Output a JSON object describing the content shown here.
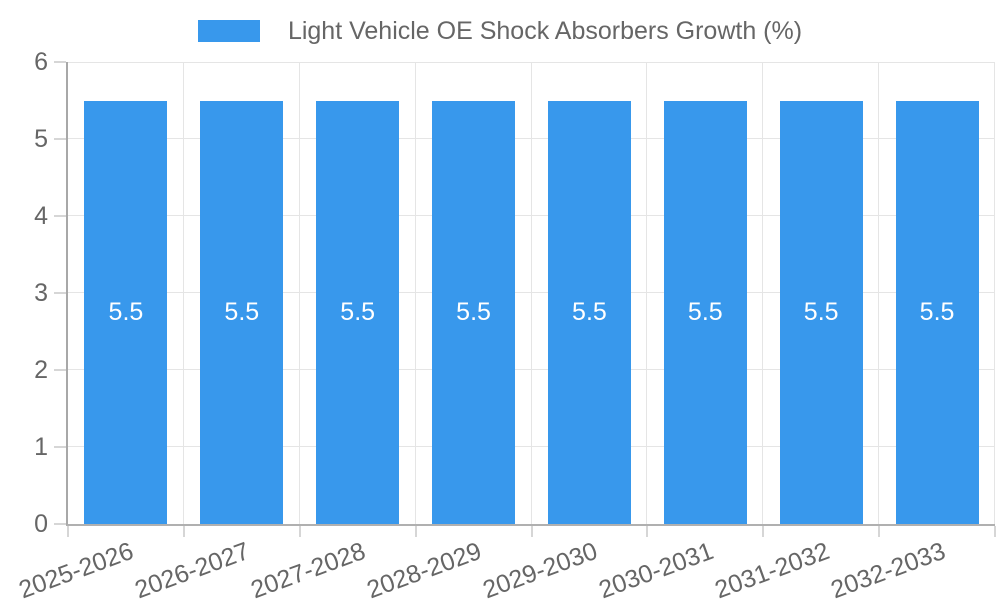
{
  "chart_data": {
    "type": "bar",
    "title": "",
    "legend": {
      "position": "top",
      "label": "Light Vehicle OE Shock Absorbers Growth (%)"
    },
    "categories": [
      "2025-2026",
      "2026-2027",
      "2027-2028",
      "2028-2029",
      "2029-2030",
      "2030-2031",
      "2031-2032",
      "2032-2033"
    ],
    "series": [
      {
        "name": "Light Vehicle OE Shock Absorbers Growth (%)",
        "values": [
          5.5,
          5.5,
          5.5,
          5.5,
          5.5,
          5.5,
          5.5,
          5.5
        ]
      }
    ],
    "value_labels": [
      "5.5",
      "5.5",
      "5.5",
      "5.5",
      "5.5",
      "5.5",
      "5.5",
      "5.5"
    ],
    "ylim": [
      0,
      6
    ],
    "yticks": [
      0,
      1,
      2,
      3,
      4,
      5,
      6
    ],
    "grid": true,
    "xlabel": "",
    "ylabel": "",
    "colors": {
      "bar": "#3898ec",
      "value_label": "#ffffff",
      "tick_label": "#666666",
      "grid_line": "#e5e5e5",
      "tick_mark": "#d6d6d6",
      "axis_line": "#a8a8a8"
    }
  }
}
